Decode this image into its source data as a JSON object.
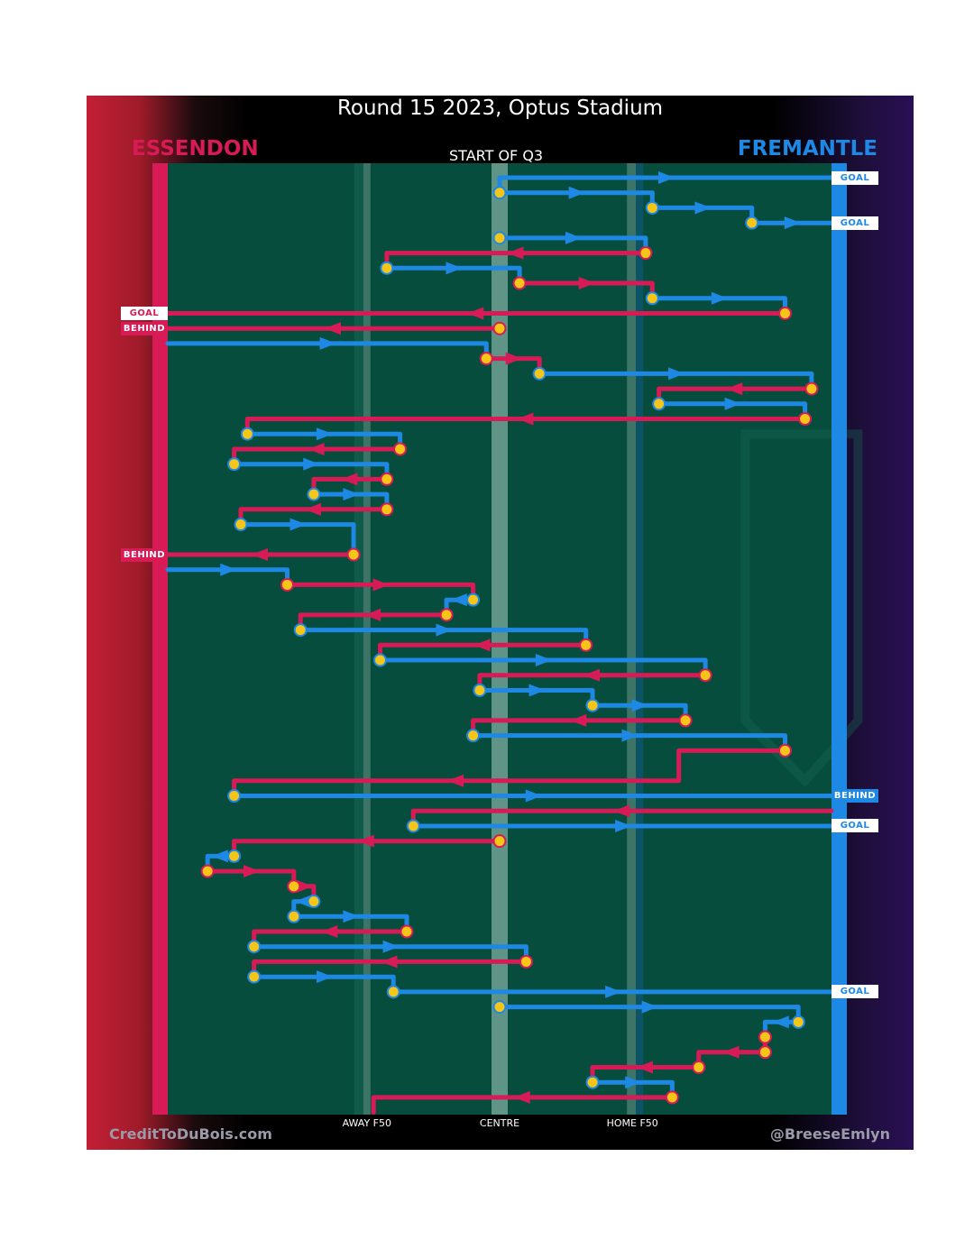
{
  "header": {
    "title": "Round 15 2023, Optus Stadium",
    "start_label": "START OF Q3"
  },
  "teams": {
    "home": {
      "name": "ESSENDON",
      "color": "#d81b57"
    },
    "away": {
      "name": "FREMANTLE",
      "color": "#1e88e5"
    }
  },
  "footer": {
    "left": "CreditToDuBois.com",
    "right": "@BreeseEmlyn"
  },
  "chart_data": {
    "type": "line",
    "title": "Round 15 2023, Optus Stadium",
    "subtitle": "START OF Q3",
    "x_axis": {
      "range": [
        0,
        100
      ],
      "tick_labels": [
        {
          "label": "AWAY F50",
          "x": 30
        },
        {
          "label": "CENTRE",
          "x": 50
        },
        {
          "label": "HOME F50",
          "x": 70
        }
      ],
      "note": "0 = Essendon goal end, 100 = Fremantle goal end"
    },
    "chains": [
      {
        "team": "away",
        "pts": [
          [
            50,
            1
          ],
          [
            50,
            0
          ],
          [
            100,
            0
          ]
        ],
        "result": "GOAL",
        "centre_bounce": true
      },
      {
        "team": "away",
        "pts": [
          [
            50,
            1
          ],
          [
            73,
            1
          ],
          [
            73,
            2
          ]
        ]
      },
      {
        "team": "away",
        "pts": [
          [
            73,
            2
          ],
          [
            88,
            2
          ],
          [
            88,
            3
          ]
        ]
      },
      {
        "team": "away",
        "pts": [
          [
            88,
            3
          ],
          [
            100,
            3
          ]
        ],
        "result": "GOAL"
      },
      {
        "team": "away",
        "pts": [
          [
            50,
            4
          ],
          [
            72,
            4
          ],
          [
            72,
            5
          ]
        ],
        "centre_bounce": true
      },
      {
        "team": "home",
        "pts": [
          [
            72,
            5
          ],
          [
            33,
            5
          ],
          [
            33,
            6
          ]
        ]
      },
      {
        "team": "away",
        "pts": [
          [
            33,
            6
          ],
          [
            53,
            6
          ],
          [
            53,
            7
          ]
        ]
      },
      {
        "team": "home",
        "pts": [
          [
            53,
            7
          ],
          [
            73,
            7
          ],
          [
            73,
            8
          ]
        ]
      },
      {
        "team": "away",
        "pts": [
          [
            73,
            8
          ],
          [
            93,
            8
          ],
          [
            93,
            9
          ]
        ]
      },
      {
        "team": "home",
        "pts": [
          [
            93,
            9
          ],
          [
            0,
            9
          ]
        ],
        "result": "GOAL"
      },
      {
        "team": "home",
        "pts": [
          [
            50,
            10
          ],
          [
            0,
            10
          ]
        ],
        "result": "BEHIND",
        "centre_bounce": true
      },
      {
        "team": "away",
        "pts": [
          [
            0,
            11
          ],
          [
            48,
            11
          ],
          [
            48,
            12
          ]
        ]
      },
      {
        "team": "home",
        "pts": [
          [
            48,
            12
          ],
          [
            56,
            12
          ],
          [
            56,
            13
          ]
        ]
      },
      {
        "team": "away",
        "pts": [
          [
            56,
            13
          ],
          [
            97,
            13
          ],
          [
            97,
            14
          ]
        ]
      },
      {
        "team": "home",
        "pts": [
          [
            97,
            14
          ],
          [
            74,
            14
          ],
          [
            74,
            15
          ]
        ]
      },
      {
        "team": "away",
        "pts": [
          [
            74,
            15
          ],
          [
            96,
            15
          ],
          [
            96,
            16
          ]
        ]
      },
      {
        "team": "home",
        "pts": [
          [
            96,
            16
          ],
          [
            12,
            16
          ],
          [
            12,
            17
          ]
        ]
      },
      {
        "team": "away",
        "pts": [
          [
            12,
            17
          ],
          [
            35,
            17
          ],
          [
            35,
            18
          ]
        ]
      },
      {
        "team": "home",
        "pts": [
          [
            35,
            18
          ],
          [
            10,
            18
          ],
          [
            10,
            19
          ]
        ]
      },
      {
        "team": "away",
        "pts": [
          [
            10,
            19
          ],
          [
            33,
            19
          ],
          [
            33,
            20
          ]
        ]
      },
      {
        "team": "home",
        "pts": [
          [
            33,
            20
          ],
          [
            22,
            20
          ],
          [
            22,
            21
          ]
        ]
      },
      {
        "team": "away",
        "pts": [
          [
            22,
            21
          ],
          [
            33,
            21
          ],
          [
            33,
            22
          ]
        ]
      },
      {
        "team": "home",
        "pts": [
          [
            33,
            22
          ],
          [
            11,
            22
          ],
          [
            11,
            23
          ]
        ]
      },
      {
        "team": "away",
        "pts": [
          [
            11,
            23
          ],
          [
            28,
            23
          ],
          [
            28,
            25
          ]
        ]
      },
      {
        "team": "home",
        "pts": [
          [
            28,
            25
          ],
          [
            0,
            25
          ]
        ],
        "result": "BEHIND"
      },
      {
        "team": "away",
        "pts": [
          [
            0,
            26
          ],
          [
            18,
            26
          ],
          [
            18,
            27
          ]
        ]
      },
      {
        "team": "home",
        "pts": [
          [
            18,
            27
          ],
          [
            46,
            27
          ],
          [
            46,
            28
          ]
        ]
      },
      {
        "team": "away",
        "pts": [
          [
            46,
            28
          ],
          [
            42,
            28
          ],
          [
            42,
            29
          ]
        ]
      },
      {
        "team": "home",
        "pts": [
          [
            42,
            29
          ],
          [
            20,
            29
          ],
          [
            20,
            30
          ]
        ]
      },
      {
        "team": "away",
        "pts": [
          [
            20,
            30
          ],
          [
            63,
            30
          ],
          [
            63,
            31
          ]
        ]
      },
      {
        "team": "home",
        "pts": [
          [
            63,
            31
          ],
          [
            32,
            31
          ],
          [
            32,
            32
          ]
        ]
      },
      {
        "team": "away",
        "pts": [
          [
            32,
            32
          ],
          [
            81,
            32
          ],
          [
            81,
            33
          ]
        ]
      },
      {
        "team": "home",
        "pts": [
          [
            81,
            33
          ],
          [
            47,
            33
          ],
          [
            47,
            34
          ]
        ]
      },
      {
        "team": "away",
        "pts": [
          [
            47,
            34
          ],
          [
            64,
            34
          ],
          [
            64,
            35
          ]
        ]
      },
      {
        "team": "away",
        "pts": [
          [
            64,
            35
          ],
          [
            78,
            35
          ],
          [
            78,
            36
          ]
        ]
      },
      {
        "team": "home",
        "pts": [
          [
            78,
            36
          ],
          [
            46,
            36
          ],
          [
            46,
            37
          ]
        ]
      },
      {
        "team": "away",
        "pts": [
          [
            46,
            37
          ],
          [
            93,
            37
          ],
          [
            93,
            38
          ]
        ]
      },
      {
        "team": "home",
        "pts": [
          [
            93,
            38
          ],
          [
            77,
            38
          ],
          [
            77,
            40
          ],
          [
            10,
            40
          ],
          [
            10,
            41
          ]
        ]
      },
      {
        "team": "away",
        "pts": [
          [
            10,
            41
          ],
          [
            100,
            41
          ]
        ],
        "result": "BEHIND"
      },
      {
        "team": "home",
        "pts": [
          [
            100,
            42
          ],
          [
            37,
            42
          ],
          [
            37,
            43
          ]
        ]
      },
      {
        "team": "away",
        "pts": [
          [
            37,
            43
          ],
          [
            100,
            43
          ]
        ],
        "result": "GOAL"
      },
      {
        "team": "home",
        "pts": [
          [
            50,
            44
          ],
          [
            10,
            44
          ],
          [
            10,
            45
          ]
        ],
        "centre_bounce": true
      },
      {
        "team": "away",
        "pts": [
          [
            10,
            45
          ],
          [
            6,
            45
          ],
          [
            6,
            46
          ]
        ]
      },
      {
        "team": "home",
        "pts": [
          [
            6,
            46
          ],
          [
            19,
            46
          ],
          [
            19,
            47
          ]
        ]
      },
      {
        "team": "home",
        "pts": [
          [
            19,
            47
          ],
          [
            22,
            47
          ],
          [
            22,
            48
          ]
        ]
      },
      {
        "team": "away",
        "pts": [
          [
            22,
            48
          ],
          [
            19,
            48
          ],
          [
            19,
            49
          ]
        ]
      },
      {
        "team": "away",
        "pts": [
          [
            19,
            49
          ],
          [
            36,
            49
          ],
          [
            36,
            50
          ]
        ]
      },
      {
        "team": "home",
        "pts": [
          [
            36,
            50
          ],
          [
            13,
            50
          ],
          [
            13,
            51
          ]
        ]
      },
      {
        "team": "away",
        "pts": [
          [
            13,
            51
          ],
          [
            54,
            51
          ],
          [
            54,
            52
          ]
        ]
      },
      {
        "team": "home",
        "pts": [
          [
            54,
            52
          ],
          [
            13,
            52
          ],
          [
            13,
            53
          ]
        ]
      },
      {
        "team": "away",
        "pts": [
          [
            13,
            53
          ],
          [
            34,
            53
          ],
          [
            34,
            54
          ]
        ]
      },
      {
        "team": "away",
        "pts": [
          [
            34,
            54
          ],
          [
            100,
            54
          ]
        ],
        "result": "GOAL"
      },
      {
        "team": "away",
        "pts": [
          [
            50,
            55
          ],
          [
            95,
            55
          ],
          [
            95,
            56
          ]
        ],
        "centre_bounce": true
      },
      {
        "team": "away",
        "pts": [
          [
            95,
            56
          ],
          [
            90,
            56
          ],
          [
            90,
            57
          ]
        ]
      },
      {
        "team": "home",
        "pts": [
          [
            90,
            57
          ],
          [
            90,
            58
          ]
        ]
      },
      {
        "team": "home",
        "pts": [
          [
            90,
            58
          ],
          [
            80,
            58
          ],
          [
            80,
            59
          ]
        ]
      },
      {
        "team": "home",
        "pts": [
          [
            80,
            59
          ],
          [
            64,
            59
          ],
          [
            64,
            60
          ]
        ]
      },
      {
        "team": "away",
        "pts": [
          [
            64,
            60
          ],
          [
            76,
            60
          ],
          [
            76,
            61
          ]
        ]
      },
      {
        "team": "home",
        "pts": [
          [
            76,
            61
          ],
          [
            31,
            61
          ],
          [
            31,
            62
          ]
        ]
      }
    ]
  }
}
